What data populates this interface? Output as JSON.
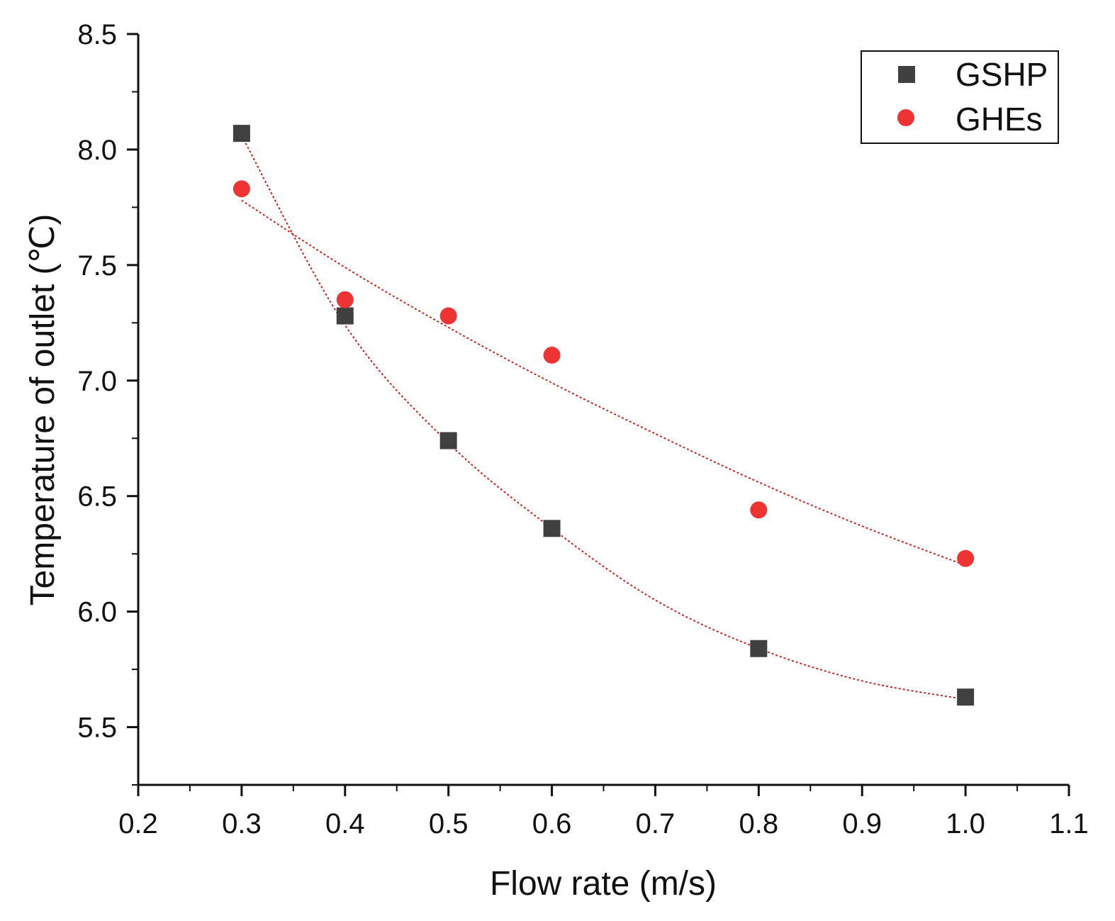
{
  "chart_data": {
    "type": "scatter",
    "xlabel": "Flow rate (m/s)",
    "ylabel": "Temperature of outlet (℃)",
    "xlim": [
      0.2,
      1.1
    ],
    "ylim": [
      5.25,
      8.5
    ],
    "x_ticks": [
      0.2,
      0.3,
      0.4,
      0.5,
      0.6,
      0.7,
      0.8,
      0.9,
      1.0,
      1.1
    ],
    "x_tick_labels": [
      "0.2",
      "0.3",
      "0.4",
      "0.5",
      "0.6",
      "0.7",
      "0.8",
      "0.9",
      "1.0",
      "1.1"
    ],
    "y_ticks": [
      5.5,
      6.0,
      6.5,
      7.0,
      7.5,
      8.0,
      8.5
    ],
    "y_tick_labels": [
      "5.5",
      "6.0",
      "6.5",
      "7.0",
      "7.5",
      "8.0",
      "8.5"
    ],
    "legend_position": "top-right",
    "series": [
      {
        "name": "GSHP",
        "marker": "square",
        "color": "#404040",
        "x": [
          0.3,
          0.4,
          0.5,
          0.6,
          0.8,
          1.0
        ],
        "y": [
          8.07,
          7.28,
          6.74,
          6.36,
          5.84,
          5.63
        ],
        "fit": [
          [
            0.3,
            8.06
          ],
          [
            0.4,
            7.24
          ],
          [
            0.5,
            6.73
          ],
          [
            0.6,
            6.36
          ],
          [
            0.7,
            6.05
          ],
          [
            0.8,
            5.84
          ],
          [
            0.9,
            5.7
          ],
          [
            1.0,
            5.62
          ]
        ],
        "fit_color": "#cc2222"
      },
      {
        "name": "GHEs",
        "marker": "circle",
        "color": "#ee3333",
        "x": [
          0.3,
          0.4,
          0.5,
          0.6,
          0.8,
          1.0
        ],
        "y": [
          7.83,
          7.35,
          7.28,
          7.11,
          6.44,
          6.23
        ],
        "fit": [
          [
            0.3,
            7.78
          ],
          [
            0.4,
            7.49
          ],
          [
            0.5,
            7.23
          ],
          [
            0.6,
            6.99
          ],
          [
            0.7,
            6.77
          ],
          [
            0.8,
            6.56
          ],
          [
            0.9,
            6.37
          ],
          [
            1.0,
            6.2
          ]
        ],
        "fit_color": "#cc2222"
      }
    ]
  }
}
